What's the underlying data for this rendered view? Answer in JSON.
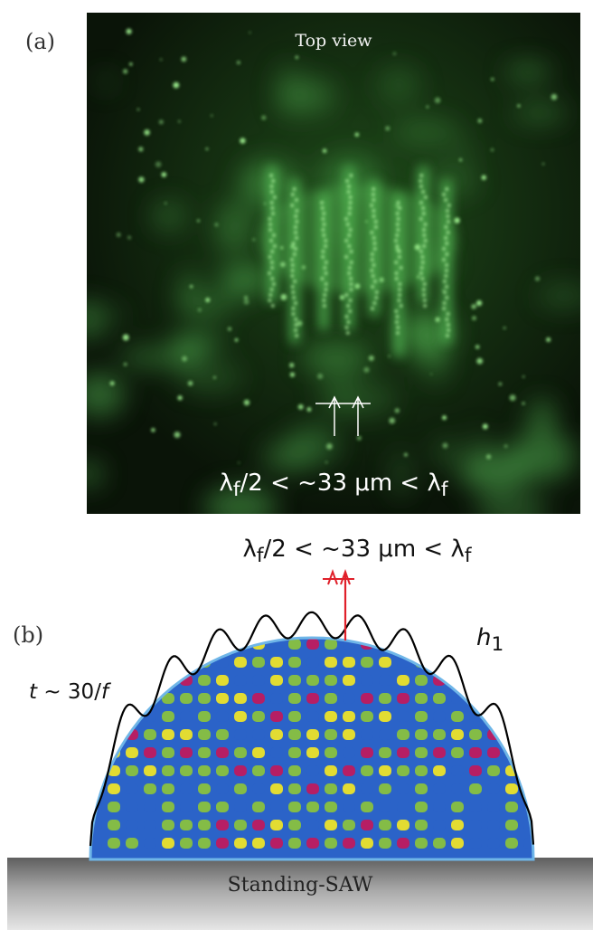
{
  "panel_a": {
    "label": "(a)",
    "title": "Top view",
    "caption_parts": [
      "λ",
      "f",
      "/2 < ~33 μm < λ",
      "f"
    ]
  },
  "panel_b": {
    "label": "(b)",
    "caption_parts": [
      "λ",
      "f",
      "/2 < ~33 μm < λ",
      "f"
    ],
    "time_parts": [
      "t",
      " ~ 30/",
      "f"
    ],
    "height_parts": [
      "h",
      "1"
    ],
    "substrate_label": "Standing-SAW"
  },
  "colors": {
    "fluorescence": "#59c45a",
    "marker_a": "#ffffff",
    "marker_b": "#e0202a",
    "profile": "#000000",
    "field_low": "#2b63c8",
    "field_mid": "#8cc33b",
    "field_high": "#f2e625",
    "field_peak": "#c2185b"
  }
}
